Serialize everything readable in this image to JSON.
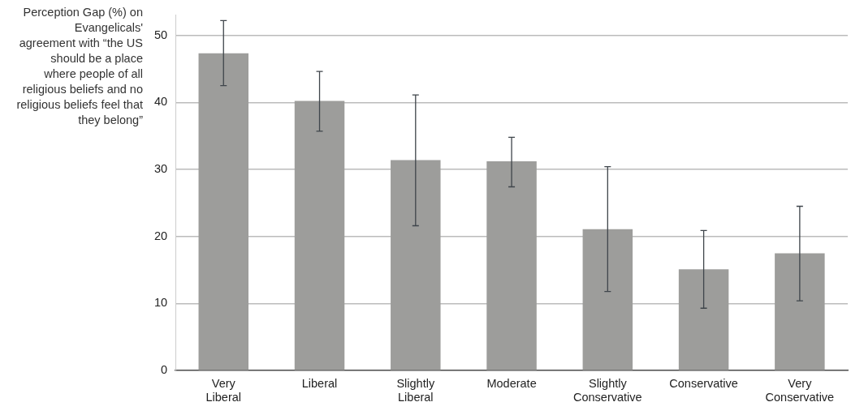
{
  "chart_data": {
    "type": "bar",
    "ylabel": "Perception Gap (%) on Evangelicals' agreement with “the US should be a place where people of all religious beliefs and no religious beliefs feel that they belong”",
    "categories": [
      "Very Liberal",
      "Liberal",
      "Slightly Liberal",
      "Moderate",
      "Slightly Conservative",
      "Conservative",
      "Very Conservative"
    ],
    "values": [
      47.3,
      40.2,
      31.4,
      31.2,
      21.1,
      15.1,
      17.5
    ],
    "errors": [
      [
        42.5,
        52.2
      ],
      [
        35.7,
        44.6
      ],
      [
        21.6,
        41.1
      ],
      [
        27.4,
        34.8
      ],
      [
        11.8,
        30.4
      ],
      [
        9.3,
        20.9
      ],
      [
        10.4,
        24.5
      ]
    ],
    "color": "#9d9d9b",
    "ylim": [
      0,
      53
    ],
    "yticks": [
      0,
      10,
      20,
      30,
      40,
      50
    ],
    "grid": "y",
    "legend": false
  }
}
